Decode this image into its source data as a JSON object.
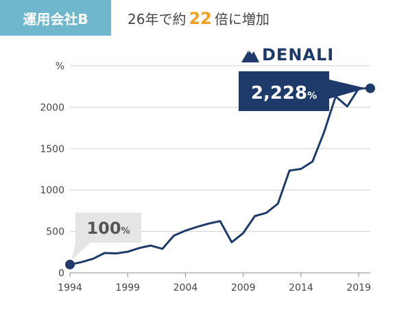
{
  "header": {
    "badge": "運用会社B",
    "headline_pre": "26年で約",
    "headline_accent": "22",
    "headline_post": "倍に増加",
    "accent_color": "#f0a020",
    "badge_color": "#6fb7cc"
  },
  "logo": {
    "text": "DENALI",
    "icon": "mountain-icon",
    "color": "#1e3a6b"
  },
  "chart_data": {
    "type": "line",
    "ylabel": "%",
    "ylim": [
      0,
      2500
    ],
    "yticks": [
      0,
      500,
      1000,
      1500,
      2000
    ],
    "xlim": [
      1994,
      2020
    ],
    "xticks": [
      1994,
      1999,
      2004,
      2009,
      2014,
      2019
    ],
    "grid": true,
    "series": [
      {
        "color": "#1e3a6b",
        "x": [
          1994,
          1995,
          1996,
          1997,
          1998,
          1999,
          2000,
          2001,
          2002,
          2003,
          2004,
          2005,
          2006,
          2007,
          2008,
          2009,
          2010,
          2011,
          2012,
          2013,
          2014,
          2015,
          2016,
          2017,
          2018,
          2019,
          2020
        ],
        "y": [
          100,
          130,
          170,
          240,
          235,
          255,
          300,
          330,
          290,
          450,
          510,
          555,
          595,
          625,
          370,
          480,
          685,
          725,
          835,
          1235,
          1255,
          1345,
          1700,
          2130,
          2010,
          2228,
          2228
        ]
      }
    ],
    "annotations": [
      {
        "x": 1994,
        "y": 100,
        "value": "100",
        "unit": "%"
      },
      {
        "x": 2020,
        "y": 2228,
        "value": "2,228",
        "unit": "%"
      }
    ]
  }
}
